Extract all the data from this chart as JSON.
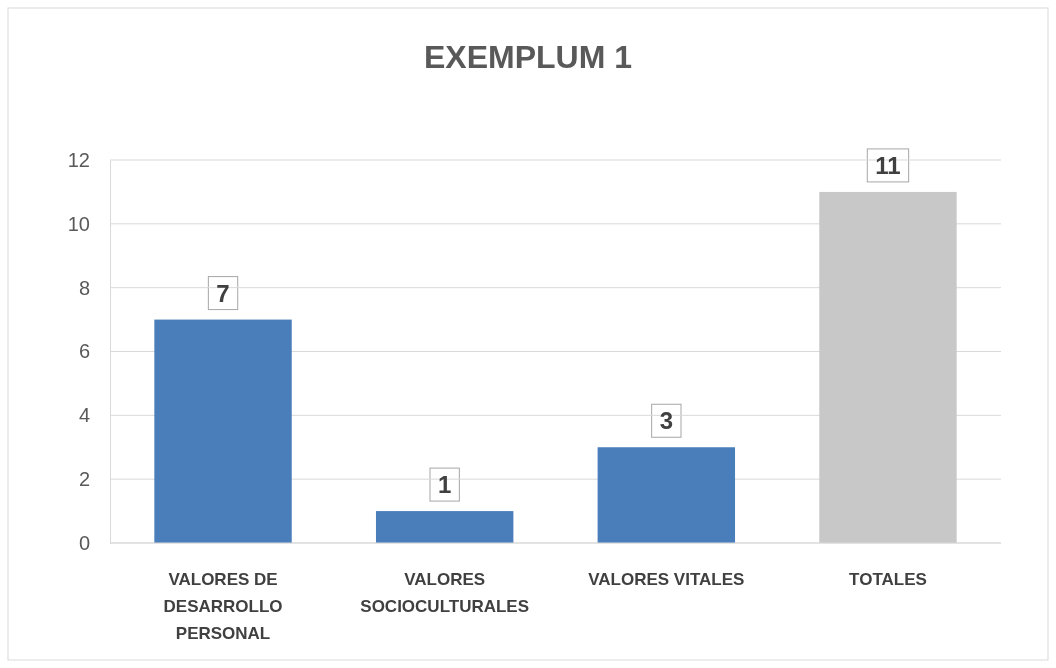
{
  "chart_data": {
    "type": "bar",
    "title": "EXEMPLUM 1",
    "categories": [
      "VALORES DE DESARROLLO PERSONAL",
      "VALORES SOCIOCULTURALES",
      "VALORES VITALES",
      "TOTALES"
    ],
    "values": [
      7,
      1,
      3,
      11
    ],
    "colors": [
      "#4a7ebb",
      "#4a7ebb",
      "#4a7ebb",
      "#c8c8c8"
    ],
    "ylim": [
      0,
      12
    ],
    "yticks": [
      0,
      2,
      4,
      6,
      8,
      10,
      12
    ],
    "grid": "y",
    "data_labels": true
  }
}
